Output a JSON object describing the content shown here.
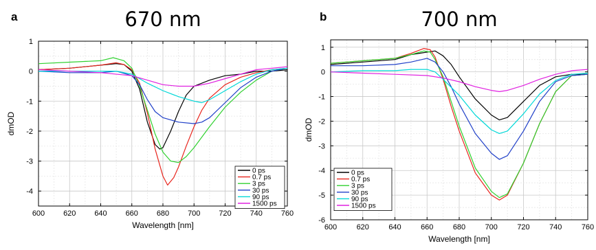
{
  "chart_data": [
    {
      "type": "line",
      "panel_label": "a",
      "title": "670 nm",
      "xlabel": "Wavelength [nm]",
      "ylabel": "dmOD",
      "xlim": [
        600,
        760
      ],
      "ylim": [
        -4.5,
        1
      ],
      "xticks": [
        600,
        620,
        640,
        660,
        680,
        700,
        720,
        740,
        760
      ],
      "yticks": [
        -4,
        -3,
        -2,
        -1,
        0,
        1
      ],
      "grid": true,
      "legend_position": "bottom-right",
      "series": [
        {
          "name": "0 ps",
          "color": "#000000",
          "x": [
            600,
            620,
            640,
            650,
            655,
            660,
            665,
            670,
            675,
            678,
            680,
            685,
            690,
            695,
            700,
            710,
            720,
            730,
            740,
            750,
            760
          ],
          "y": [
            0.05,
            0.1,
            0.2,
            0.25,
            0.22,
            0.0,
            -0.6,
            -1.7,
            -2.45,
            -2.6,
            -2.55,
            -2.0,
            -1.35,
            -0.8,
            -0.5,
            -0.3,
            -0.15,
            -0.1,
            0.0,
            0.0,
            0.05
          ]
        },
        {
          "name": "0.7 ps",
          "color": "#e8241c",
          "x": [
            600,
            620,
            640,
            650,
            655,
            660,
            665,
            670,
            675,
            680,
            683,
            687,
            690,
            695,
            700,
            705,
            710,
            720,
            730,
            740,
            750,
            760
          ],
          "y": [
            0.05,
            0.1,
            0.2,
            0.28,
            0.22,
            0.05,
            -0.4,
            -1.4,
            -2.6,
            -3.5,
            -3.8,
            -3.55,
            -3.2,
            -2.5,
            -1.85,
            -1.3,
            -0.9,
            -0.45,
            -0.2,
            -0.05,
            0.05,
            0.1
          ]
        },
        {
          "name": "3 ps",
          "color": "#2fd12f",
          "x": [
            600,
            620,
            640,
            648,
            655,
            660,
            665,
            670,
            675,
            680,
            685,
            690,
            695,
            700,
            710,
            720,
            730,
            740,
            750,
            760
          ],
          "y": [
            0.25,
            0.3,
            0.35,
            0.45,
            0.35,
            0.1,
            -0.5,
            -1.3,
            -2.1,
            -2.7,
            -3.0,
            -3.05,
            -2.85,
            -2.55,
            -1.85,
            -1.2,
            -0.7,
            -0.3,
            0.0,
            0.1
          ]
        },
        {
          "name": "30 ps",
          "color": "#1f3fc8",
          "x": [
            600,
            620,
            640,
            650,
            660,
            665,
            670,
            675,
            680,
            690,
            700,
            705,
            710,
            720,
            730,
            740,
            750,
            760
          ],
          "y": [
            0.0,
            -0.05,
            -0.05,
            0.0,
            -0.15,
            -0.45,
            -0.95,
            -1.35,
            -1.55,
            -1.7,
            -1.75,
            -1.7,
            -1.55,
            -1.05,
            -0.55,
            -0.2,
            0.0,
            0.1
          ]
        },
        {
          "name": "90 ps",
          "color": "#00d8d8",
          "x": [
            600,
            620,
            640,
            650,
            660,
            670,
            680,
            690,
            700,
            705,
            710,
            720,
            730,
            740,
            750,
            760
          ],
          "y": [
            0.0,
            0.0,
            0.0,
            0.0,
            -0.1,
            -0.4,
            -0.65,
            -0.85,
            -1.0,
            -1.05,
            -0.95,
            -0.65,
            -0.35,
            -0.1,
            0.05,
            0.1
          ]
        },
        {
          "name": "1500 ps",
          "color": "#e020e0",
          "x": [
            600,
            620,
            640,
            660,
            670,
            680,
            690,
            700,
            710,
            720,
            730,
            740,
            750,
            760
          ],
          "y": [
            0.05,
            0.0,
            -0.05,
            -0.15,
            -0.3,
            -0.45,
            -0.5,
            -0.5,
            -0.4,
            -0.25,
            -0.1,
            0.05,
            0.1,
            0.15
          ]
        }
      ]
    },
    {
      "type": "line",
      "panel_label": "b",
      "title": "700 nm",
      "xlabel": "Wavelength [nm]",
      "ylabel": "dmOD",
      "xlim": [
        600,
        760
      ],
      "ylim": [
        -6,
        1.3
      ],
      "xticks": [
        600,
        620,
        640,
        660,
        680,
        700,
        720,
        740,
        760
      ],
      "yticks": [
        -6,
        -5,
        -4,
        -3,
        -2,
        -1,
        0,
        1
      ],
      "grid": true,
      "legend_position": "bottom-left",
      "series": [
        {
          "name": "0 ps",
          "color": "#000000",
          "x": [
            600,
            620,
            640,
            650,
            660,
            665,
            670,
            675,
            680,
            690,
            700,
            705,
            710,
            720,
            730,
            740,
            750,
            760
          ],
          "y": [
            0.3,
            0.4,
            0.5,
            0.7,
            0.8,
            0.85,
            0.65,
            0.3,
            -0.2,
            -1.1,
            -1.75,
            -1.95,
            -1.85,
            -1.2,
            -0.55,
            -0.2,
            -0.1,
            -0.1
          ]
        },
        {
          "name": "0.7 ps",
          "color": "#e8241c",
          "x": [
            600,
            620,
            640,
            650,
            658,
            662,
            665,
            670,
            675,
            680,
            690,
            700,
            705,
            710,
            720,
            730,
            740,
            750,
            760
          ],
          "y": [
            0.35,
            0.45,
            0.55,
            0.75,
            0.95,
            0.9,
            0.6,
            -0.3,
            -1.4,
            -2.4,
            -4.1,
            -5.0,
            -5.2,
            -5.0,
            -3.7,
            -2.1,
            -0.8,
            -0.15,
            -0.1
          ]
        },
        {
          "name": "3 ps",
          "color": "#2fd12f",
          "x": [
            600,
            620,
            640,
            650,
            658,
            662,
            665,
            670,
            675,
            680,
            690,
            700,
            705,
            710,
            720,
            730,
            740,
            750,
            760
          ],
          "y": [
            0.35,
            0.45,
            0.55,
            0.7,
            0.85,
            0.8,
            0.5,
            -0.2,
            -1.2,
            -2.2,
            -3.9,
            -4.85,
            -5.1,
            -4.95,
            -3.7,
            -2.1,
            -0.8,
            -0.15,
            -0.1
          ]
        },
        {
          "name": "30 ps",
          "color": "#1f3fc8",
          "x": [
            600,
            620,
            640,
            650,
            660,
            665,
            670,
            675,
            680,
            690,
            700,
            705,
            710,
            720,
            730,
            740,
            750,
            760
          ],
          "y": [
            0.25,
            0.25,
            0.3,
            0.4,
            0.55,
            0.4,
            0.0,
            -0.6,
            -1.3,
            -2.5,
            -3.3,
            -3.55,
            -3.4,
            -2.4,
            -1.2,
            -0.4,
            -0.15,
            -0.1
          ]
        },
        {
          "name": "90 ps",
          "color": "#00d8d8",
          "x": [
            600,
            620,
            640,
            650,
            660,
            665,
            670,
            680,
            690,
            700,
            705,
            710,
            720,
            730,
            740,
            750,
            760
          ],
          "y": [
            0.0,
            0.05,
            0.05,
            0.1,
            0.1,
            0.0,
            -0.3,
            -0.95,
            -1.75,
            -2.35,
            -2.5,
            -2.4,
            -1.7,
            -0.9,
            -0.35,
            -0.1,
            -0.05
          ]
        },
        {
          "name": "1500 ps",
          "color": "#e020e0",
          "x": [
            600,
            620,
            640,
            660,
            670,
            680,
            690,
            700,
            705,
            710,
            720,
            730,
            740,
            750,
            760
          ],
          "y": [
            0.0,
            -0.05,
            -0.1,
            -0.15,
            -0.25,
            -0.4,
            -0.6,
            -0.75,
            -0.8,
            -0.75,
            -0.55,
            -0.3,
            -0.1,
            0.05,
            0.1
          ]
        }
      ]
    }
  ]
}
